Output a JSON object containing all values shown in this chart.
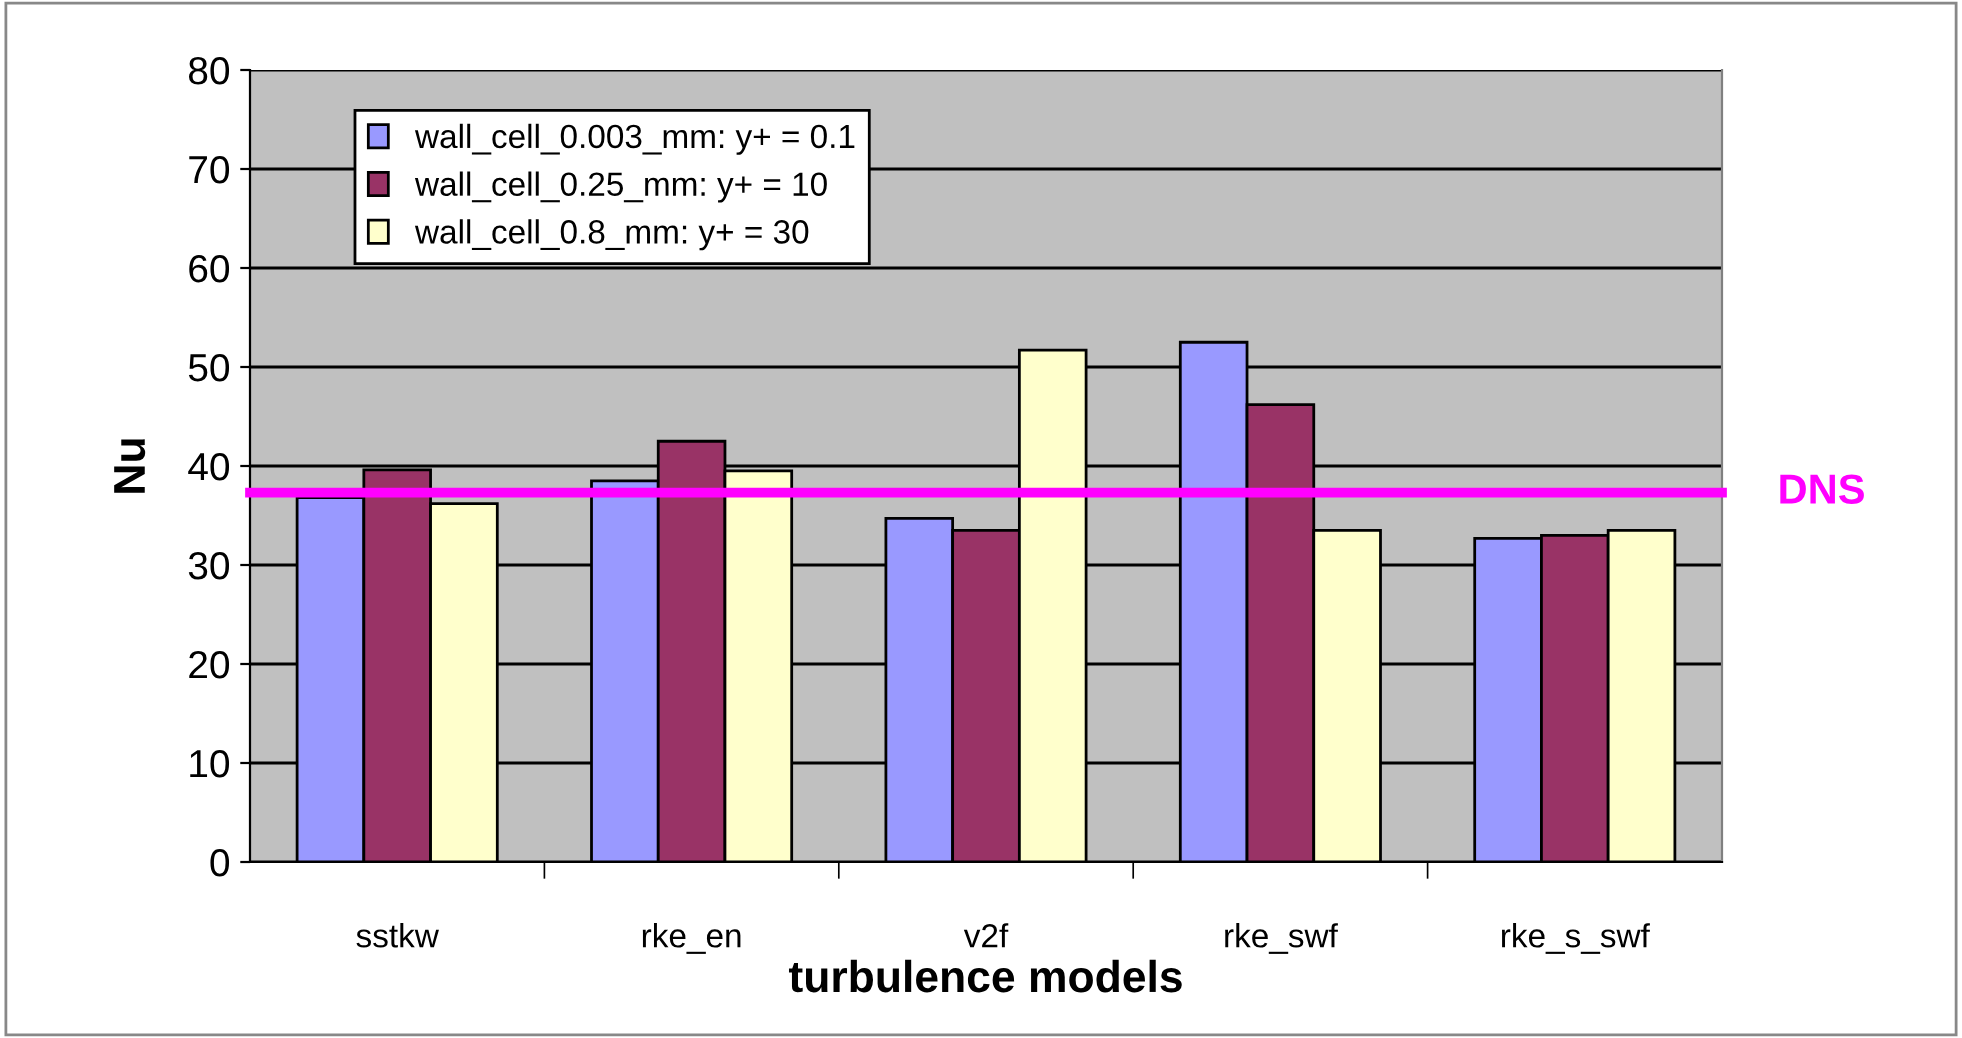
{
  "chart_data": {
    "type": "bar",
    "xlabel": "turbulence models",
    "ylabel": "Nu",
    "categories": [
      "sstkw",
      "rke_en",
      "v2f",
      "rke_swf",
      "rke_s_swf"
    ],
    "series": [
      {
        "name": "wall_cell_0.003_mm: y+ = 0.1",
        "color": "#9999ff",
        "values": [
          36.8,
          38.5,
          34.7,
          52.5,
          32.7
        ]
      },
      {
        "name": "wall_cell_0.25_mm: y+ = 10",
        "color": "#993366",
        "values": [
          39.6,
          42.5,
          33.5,
          46.2,
          33.0
        ]
      },
      {
        "name": "wall_cell_0.8_mm: y+ = 30",
        "color": "#ffffcc",
        "values": [
          36.2,
          39.5,
          51.7,
          33.5,
          33.5
        ]
      }
    ],
    "ylim": [
      0,
      80
    ],
    "yticks": [
      0,
      10,
      20,
      30,
      40,
      50,
      60,
      70,
      80
    ],
    "grid": "y",
    "legend": "top left",
    "ref_lines": [
      {
        "axis": "y",
        "value": 37.3,
        "label": "DNS",
        "color": "#ff00ff"
      }
    ]
  }
}
